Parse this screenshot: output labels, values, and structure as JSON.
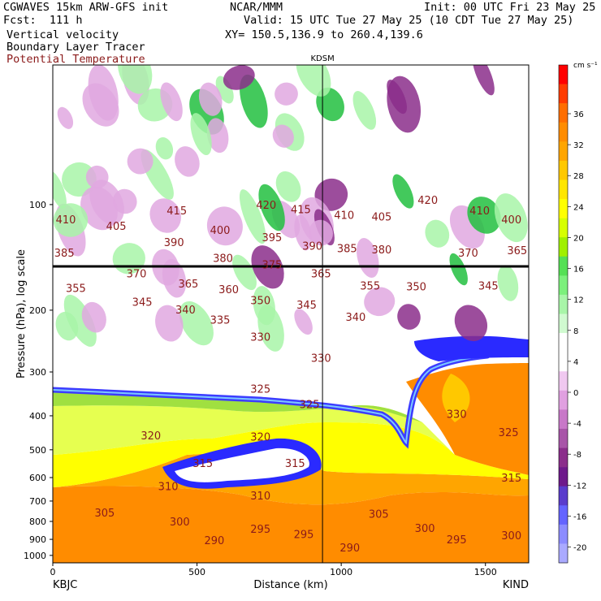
{
  "header": {
    "model": "CGWAVES 15km ARW-GFS init",
    "forecast": "Fcst:  111 h",
    "field1": "Vertical velocity",
    "field2": "Boundary Layer Tracer",
    "field3": "Potential Temperature",
    "org": "NCAR/MMM",
    "init": "Init: 00 UTC Fri 23 May 25",
    "valid": "Valid: 15 UTC Tue 27 May 25 (10 CDT Tue 27 May 25)",
    "xy": "XY= 150.5,136.9 to 260.4,139.6",
    "theta_color": "#8b1a1a"
  },
  "chart_data": {
    "type": "heatmap",
    "title": "",
    "xlabel": "Distance (km)",
    "ylabel": "Pressure (hPa), log scale",
    "xlim": [
      0,
      1650
    ],
    "ylim": [
      1050,
      40
    ],
    "y_scale": "log",
    "x_ticks": [
      0,
      500,
      1000,
      1500
    ],
    "y_ticks": [
      100,
      200,
      300,
      400,
      500,
      600,
      700,
      800,
      900,
      1000
    ],
    "left_station": "KBJC",
    "right_station": "KIND",
    "marker_station": "KDSM",
    "marker_x": 935,
    "tropopause_pressure": 150,
    "colorbar": {
      "units": "cm s⁻¹",
      "ticks": [
        36,
        32,
        28,
        24,
        20,
        16,
        12,
        8,
        4,
        0,
        -4,
        -8,
        -12,
        -16,
        -20
      ],
      "colors": [
        "#ff0000",
        "#ff3c00",
        "#ff6e00",
        "#ff8c00",
        "#ffa500",
        "#ffc800",
        "#ffe600",
        "#ffff00",
        "#d7ff00",
        "#a0f000",
        "#55e055",
        "#7cf07c",
        "#a8f5a8",
        "#d0fad0",
        "#ffffff",
        "#ffffff",
        "#f0c8f0",
        "#e0a0e0",
        "#c878c8",
        "#a855a8",
        "#8b2e8b",
        "#6e1a8b",
        "#5a3ccc",
        "#6464ff",
        "#8c8cff",
        "#aaaaff"
      ]
    },
    "isentropes": [
      {
        "theta": "410",
        "p": 110
      },
      {
        "theta": "405",
        "p": 112
      },
      {
        "theta": "415",
        "p": 105
      },
      {
        "theta": "420",
        "p": 103
      },
      {
        "theta": "400",
        "p": 120
      },
      {
        "theta": "395",
        "p": 125
      },
      {
        "theta": "390",
        "p": 130
      },
      {
        "theta": "385",
        "p": 132
      },
      {
        "theta": "380",
        "p": 140
      },
      {
        "theta": "375",
        "p": 145
      },
      {
        "theta": "370",
        "p": 155
      },
      {
        "theta": "365",
        "p": 165
      },
      {
        "theta": "360",
        "p": 170
      },
      {
        "theta": "355",
        "p": 175
      },
      {
        "theta": "350",
        "p": 180
      },
      {
        "theta": "345",
        "p": 190
      },
      {
        "theta": "340",
        "p": 200
      },
      {
        "theta": "335",
        "p": 210
      },
      {
        "theta": "330",
        "p": 240
      },
      {
        "theta": "325",
        "p": 310
      },
      {
        "theta": "320",
        "p": 430
      },
      {
        "theta": "315",
        "p": 530
      },
      {
        "theta": "310",
        "p": 620
      },
      {
        "theta": "305",
        "p": 710
      },
      {
        "theta": "300",
        "p": 790
      },
      {
        "theta": "295",
        "p": 850
      },
      {
        "theta": "290",
        "p": 920
      }
    ],
    "isentrope_labels": [
      {
        "t": "410",
        "x": 45,
        "p": 110
      },
      {
        "t": "405",
        "x": 220,
        "p": 115
      },
      {
        "t": "415",
        "x": 430,
        "p": 104
      },
      {
        "t": "420",
        "x": 740,
        "p": 100
      },
      {
        "t": "415",
        "x": 860,
        "p": 103
      },
      {
        "t": "410",
        "x": 1010,
        "p": 107
      },
      {
        "t": "405",
        "x": 1140,
        "p": 108
      },
      {
        "t": "420",
        "x": 1300,
        "p": 97
      },
      {
        "t": "410",
        "x": 1480,
        "p": 104
      },
      {
        "t": "400",
        "x": 1590,
        "p": 110
      },
      {
        "t": "400",
        "x": 580,
        "p": 118
      },
      {
        "t": "395",
        "x": 760,
        "p": 124
      },
      {
        "t": "390",
        "x": 420,
        "p": 128
      },
      {
        "t": "390",
        "x": 900,
        "p": 131
      },
      {
        "t": "385",
        "x": 1020,
        "p": 133
      },
      {
        "t": "380",
        "x": 1140,
        "p": 134
      },
      {
        "t": "385",
        "x": 40,
        "p": 137
      },
      {
        "t": "380",
        "x": 590,
        "p": 142
      },
      {
        "t": "375",
        "x": 760,
        "p": 148
      },
      {
        "t": "370",
        "x": 1440,
        "p": 137
      },
      {
        "t": "365",
        "x": 1610,
        "p": 135
      },
      {
        "t": "370",
        "x": 290,
        "p": 157
      },
      {
        "t": "365",
        "x": 470,
        "p": 168
      },
      {
        "t": "360",
        "x": 610,
        "p": 174
      },
      {
        "t": "365",
        "x": 930,
        "p": 157
      },
      {
        "t": "355",
        "x": 80,
        "p": 173
      },
      {
        "t": "355",
        "x": 1100,
        "p": 170
      },
      {
        "t": "350",
        "x": 1260,
        "p": 171
      },
      {
        "t": "345",
        "x": 1510,
        "p": 170
      },
      {
        "t": "350",
        "x": 720,
        "p": 187
      },
      {
        "t": "345",
        "x": 310,
        "p": 189
      },
      {
        "t": "345",
        "x": 880,
        "p": 193
      },
      {
        "t": "340",
        "x": 460,
        "p": 199
      },
      {
        "t": "335",
        "x": 580,
        "p": 213
      },
      {
        "t": "340",
        "x": 1050,
        "p": 209
      },
      {
        "t": "330",
        "x": 720,
        "p": 238
      },
      {
        "t": "330",
        "x": 930,
        "p": 273
      },
      {
        "t": "325",
        "x": 720,
        "p": 335
      },
      {
        "t": "325",
        "x": 890,
        "p": 370
      },
      {
        "t": "320",
        "x": 340,
        "p": 455
      },
      {
        "t": "320",
        "x": 720,
        "p": 458
      },
      {
        "t": "315",
        "x": 520,
        "p": 545
      },
      {
        "t": "315",
        "x": 840,
        "p": 545
      },
      {
        "t": "310",
        "x": 400,
        "p": 635
      },
      {
        "t": "310",
        "x": 720,
        "p": 675
      },
      {
        "t": "305",
        "x": 180,
        "p": 755
      },
      {
        "t": "305",
        "x": 1130,
        "p": 760
      },
      {
        "t": "300",
        "x": 440,
        "p": 800
      },
      {
        "t": "295",
        "x": 720,
        "p": 840
      },
      {
        "t": "295",
        "x": 870,
        "p": 870
      },
      {
        "t": "290",
        "x": 560,
        "p": 905
      },
      {
        "t": "290",
        "x": 1030,
        "p": 950
      },
      {
        "t": "300",
        "x": 1290,
        "p": 835
      },
      {
        "t": "295",
        "x": 1400,
        "p": 900
      },
      {
        "t": "300",
        "x": 1590,
        "p": 875
      },
      {
        "t": "330",
        "x": 1400,
        "p": 395
      },
      {
        "t": "325",
        "x": 1580,
        "p": 445
      },
      {
        "t": "315",
        "x": 1590,
        "p": 600
      }
    ]
  }
}
